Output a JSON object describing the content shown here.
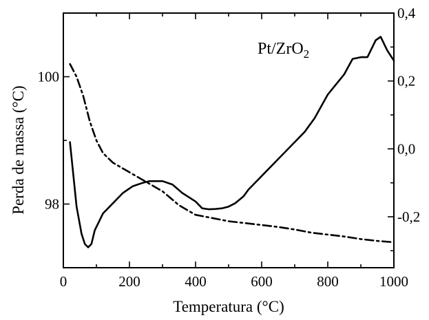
{
  "chart_data": {
    "type": "line",
    "title": "",
    "xlabel": "Temperatura (°C)",
    "ylabel_left": "Perda de massa  (°C)",
    "ylabel_right": "",
    "xlim": [
      0,
      1000
    ],
    "ylim_left": [
      97.0,
      101.0
    ],
    "ylim_right": [
      -0.35,
      0.4
    ],
    "xticks": [
      0,
      200,
      400,
      600,
      800,
      1000
    ],
    "yticks_left": [
      98,
      100
    ],
    "yticks_left_labels": [
      "98",
      "100"
    ],
    "yticks_right": [
      -0.2,
      0.0,
      0.2,
      0.4
    ],
    "yticks_right_labels": [
      "-0,2",
      "0,0",
      "0,2",
      "0,4"
    ],
    "grid": false,
    "annotation": {
      "base": "Pt/ZrO",
      "sub": "2"
    },
    "series": [
      {
        "axis": "right",
        "style": "solid",
        "x": [
          20,
          40,
          55,
          65,
          75,
          85,
          95,
          120,
          150,
          180,
          210,
          240,
          260,
          300,
          330,
          360,
          400,
          420,
          440,
          460,
          480,
          500,
          520,
          545,
          560,
          600,
          650,
          700,
          730,
          760,
          800,
          850,
          875,
          900,
          920,
          945,
          960,
          980,
          1000
        ],
        "y": [
          0.02,
          -0.17,
          -0.25,
          -0.28,
          -0.29,
          -0.28,
          -0.24,
          -0.19,
          -0.16,
          -0.13,
          -0.11,
          -0.1,
          -0.095,
          -0.095,
          -0.105,
          -0.13,
          -0.155,
          -0.175,
          -0.178,
          -0.177,
          -0.175,
          -0.17,
          -0.16,
          -0.14,
          -0.12,
          -0.08,
          -0.03,
          0.02,
          0.05,
          0.09,
          0.16,
          0.22,
          0.265,
          0.27,
          0.27,
          0.32,
          0.33,
          0.29,
          0.26
        ]
      },
      {
        "axis": "left",
        "style": "dashdot",
        "x": [
          20,
          40,
          60,
          80,
          100,
          120,
          150,
          200,
          250,
          300,
          350,
          400,
          450,
          500,
          550,
          600,
          650,
          700,
          750,
          800,
          850,
          900,
          950,
          1000
        ],
        "y": [
          100.2,
          100.0,
          99.7,
          99.3,
          99.0,
          98.8,
          98.65,
          98.5,
          98.35,
          98.2,
          97.98,
          97.83,
          97.78,
          97.73,
          97.7,
          97.67,
          97.64,
          97.6,
          97.55,
          97.52,
          97.49,
          97.45,
          97.42,
          97.4
        ]
      }
    ]
  }
}
